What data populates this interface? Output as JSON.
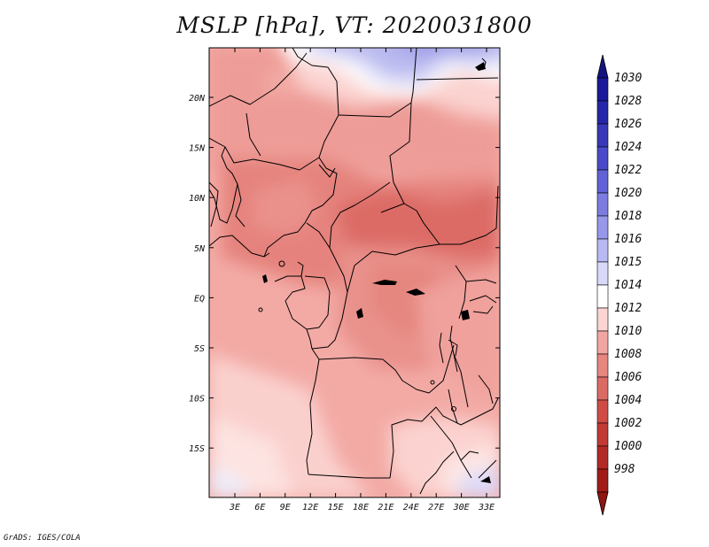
{
  "title": "MSLP [hPa], VT: 2020031800",
  "credit": "GrADS: IGES/COLA",
  "lat_axis": [
    "20N",
    "15N",
    "10N",
    "5N",
    "EQ",
    "5S",
    "10S",
    "15S"
  ],
  "lon_axis": [
    "3E",
    "6E",
    "9E",
    "12E",
    "15E",
    "18E",
    "21E",
    "24E",
    "27E",
    "30E",
    "33E"
  ],
  "colorbar": {
    "labels": [
      "1030",
      "1028",
      "1026",
      "1024",
      "1022",
      "1020",
      "1018",
      "1016",
      "1015",
      "1014",
      "1012",
      "1010",
      "1008",
      "1006",
      "1004",
      "1002",
      "1000",
      "998"
    ],
    "colors": [
      "#1a1a99",
      "#2626a8",
      "#3838b8",
      "#4a4ac8",
      "#6262d6",
      "#7c7ce0",
      "#9898ea",
      "#b8b8f2",
      "#d8d8f8",
      "#ffffff",
      "#fcd4d2",
      "#f2a6a2",
      "#e7857f",
      "#dc6a64",
      "#cf4c46",
      "#c23a35",
      "#b22a26",
      "#a11b18"
    ],
    "top_color": "#141480",
    "bottom_color": "#901410"
  },
  "colors": {
    "frame": "#000000",
    "background": "#ffffff"
  }
}
